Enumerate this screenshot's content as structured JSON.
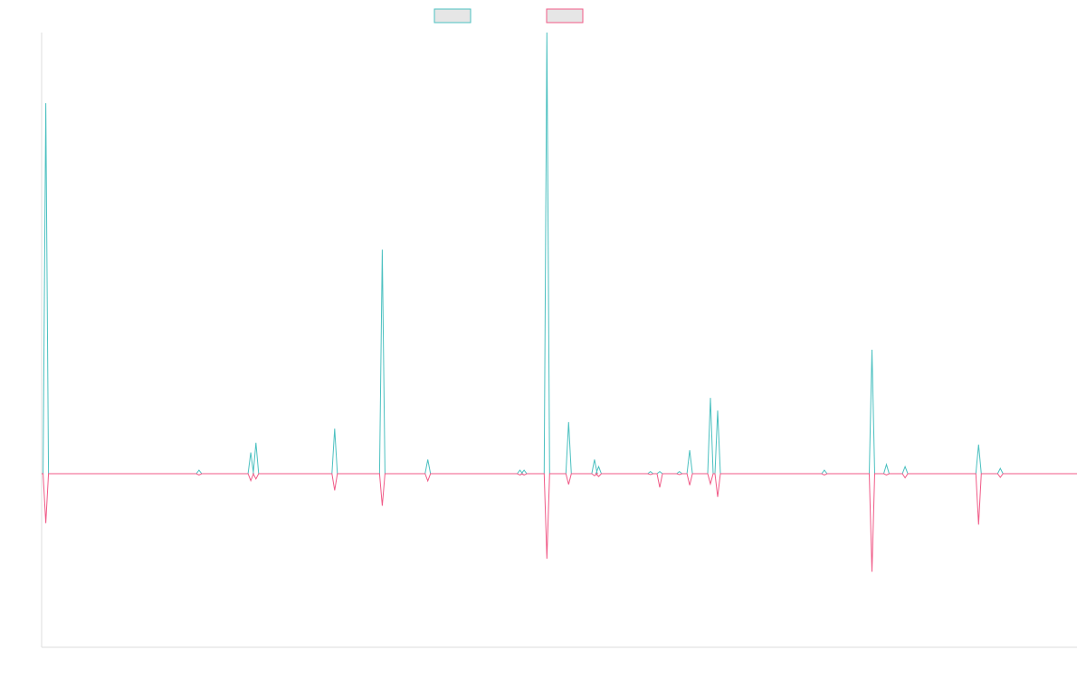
{
  "chart_data": {
    "type": "line",
    "title": "",
    "xlabel": "",
    "ylabel": "",
    "legend": {
      "placement": "top-center"
    },
    "grid": false,
    "ylim": [
      -100,
      100
    ],
    "xlim": [
      0,
      100
    ],
    "series": [
      {
        "color": "#4bc0c0",
        "fill": "#e6e6e6",
        "direction": "up",
        "points": [
          {
            "x": 0.4,
            "y": 84
          },
          {
            "x": 15.2,
            "y": 0.8
          },
          {
            "x": 20.2,
            "y": 4.8
          },
          {
            "x": 20.7,
            "y": 7
          },
          {
            "x": 28.3,
            "y": 10.2
          },
          {
            "x": 32.9,
            "y": 50.8
          },
          {
            "x": 37.3,
            "y": 3.2
          },
          {
            "x": 46.2,
            "y": 0.8
          },
          {
            "x": 46.6,
            "y": 0.8
          },
          {
            "x": 48.8,
            "y": 100
          },
          {
            "x": 50.9,
            "y": 11.7
          },
          {
            "x": 53.4,
            "y": 3.2
          },
          {
            "x": 53.8,
            "y": 1.6
          },
          {
            "x": 58.8,
            "y": 0.5
          },
          {
            "x": 59.7,
            "y": 0.5
          },
          {
            "x": 61.6,
            "y": 0.5
          },
          {
            "x": 62.6,
            "y": 5.3
          },
          {
            "x": 64.6,
            "y": 17.2
          },
          {
            "x": 65.3,
            "y": 14.3
          },
          {
            "x": 75.6,
            "y": 0.8
          },
          {
            "x": 80.2,
            "y": 28.1
          },
          {
            "x": 81.6,
            "y": 2.1
          },
          {
            "x": 83.4,
            "y": 1.6
          },
          {
            "x": 90.5,
            "y": 6.6
          },
          {
            "x": 92.6,
            "y": 1.2
          }
        ]
      },
      {
        "color": "#f05a87",
        "fill": "#e6e6e6",
        "direction": "down",
        "points": [
          {
            "x": 0.4,
            "y": 28.5
          },
          {
            "x": 15.2,
            "y": 0.8
          },
          {
            "x": 20.2,
            "y": 4
          },
          {
            "x": 20.7,
            "y": 3
          },
          {
            "x": 28.3,
            "y": 9.6
          },
          {
            "x": 32.9,
            "y": 18.5
          },
          {
            "x": 37.3,
            "y": 4.2
          },
          {
            "x": 46.2,
            "y": 0.8
          },
          {
            "x": 46.6,
            "y": 0.8
          },
          {
            "x": 48.8,
            "y": 49
          },
          {
            "x": 50.9,
            "y": 6.2
          },
          {
            "x": 53.4,
            "y": 1.2
          },
          {
            "x": 53.8,
            "y": 1.6
          },
          {
            "x": 58.8,
            "y": 0.5
          },
          {
            "x": 59.7,
            "y": 7.9
          },
          {
            "x": 61.6,
            "y": 0.5
          },
          {
            "x": 62.6,
            "y": 6.6
          },
          {
            "x": 64.6,
            "y": 5.9
          },
          {
            "x": 65.3,
            "y": 13.4
          },
          {
            "x": 75.6,
            "y": 0.8
          },
          {
            "x": 80.2,
            "y": 56.5
          },
          {
            "x": 81.6,
            "y": 0.8
          },
          {
            "x": 83.4,
            "y": 2.4
          },
          {
            "x": 90.5,
            "y": 29.4
          },
          {
            "x": 92.6,
            "y": 2.1
          }
        ]
      }
    ]
  }
}
